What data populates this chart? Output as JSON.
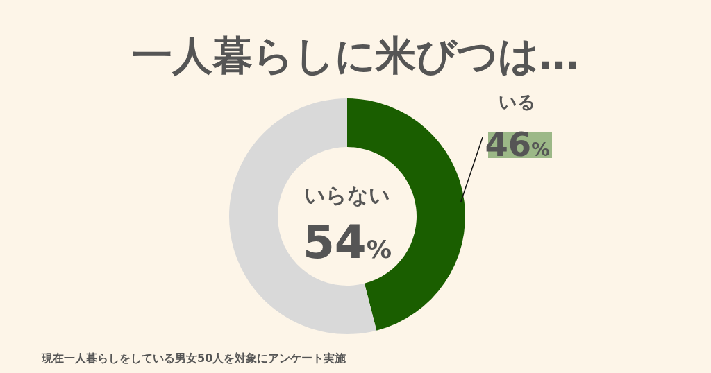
{
  "chart_data": {
    "type": "donut",
    "title": "一人暮らしに米びつは…",
    "categories": [
      "いる",
      "いらない"
    ],
    "values": [
      46,
      54
    ],
    "colors": [
      "#1a5e00",
      "#d9d9d9"
    ],
    "value_labels": [
      "46%",
      "54%"
    ],
    "annotations": [
      "現在一人暮らしをしている男女50人を対象にアンケート実施"
    ]
  }
}
